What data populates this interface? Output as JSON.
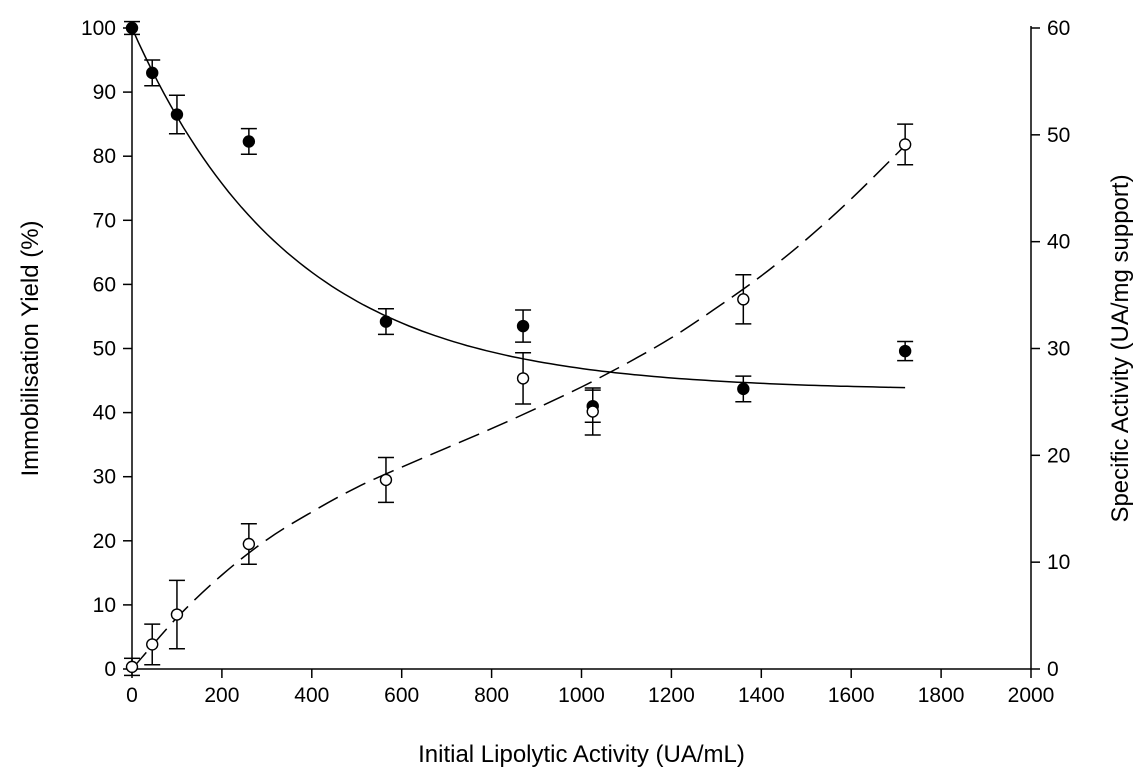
{
  "chart_data": {
    "type": "scatter",
    "title": "",
    "xlabel": "Initial Lipolytic Activity (UA/mL)",
    "ylabel_left": "Immobilisation Yield (%)",
    "ylabel_right": "Specific Activity (UA/mg support)",
    "xlim": [
      0,
      2000
    ],
    "ylim_left": [
      0,
      100
    ],
    "ylim_right": [
      0,
      60
    ],
    "xticks": [
      0,
      200,
      400,
      600,
      800,
      1000,
      1200,
      1400,
      1600,
      1800,
      2000
    ],
    "yticks_left": [
      0,
      10,
      20,
      30,
      40,
      50,
      60,
      70,
      80,
      90,
      100
    ],
    "yticks_right": [
      0,
      10,
      20,
      30,
      40,
      50,
      60
    ],
    "grid": false,
    "legend": "none",
    "series": [
      {
        "axis": "left",
        "marker": "filled-circle",
        "points": [
          {
            "x": 0,
            "y": 100,
            "err": 1
          },
          {
            "x": 45,
            "y": 93,
            "err": 2
          },
          {
            "x": 100,
            "y": 86.5,
            "err": 3
          },
          {
            "x": 260,
            "y": 82.3,
            "err": 2
          },
          {
            "x": 565,
            "y": 54.2,
            "err": 2
          },
          {
            "x": 870,
            "y": 53.5,
            "err": 2.5
          },
          {
            "x": 1025,
            "y": 41,
            "err": 2.5
          },
          {
            "x": 1360,
            "y": 43.7,
            "err": 2
          },
          {
            "x": 1720,
            "y": 49.6,
            "err": 1.5
          }
        ],
        "fit": {
          "style": "solid",
          "x": [
            0,
            1720
          ],
          "y": [
            100,
            43.9
          ],
          "decay_rate": 0.0028
        }
      },
      {
        "axis": "right",
        "marker": "open-circle",
        "points": [
          {
            "x": 0,
            "y": 0.2,
            "err": 0.8
          },
          {
            "x": 45,
            "y": 2.3,
            "err": 1.9
          },
          {
            "x": 100,
            "y": 5.1,
            "err": 3.2
          },
          {
            "x": 260,
            "y": 11.7,
            "err": 1.9
          },
          {
            "x": 565,
            "y": 17.7,
            "err": 2.1
          },
          {
            "x": 870,
            "y": 27.2,
            "err": 2.4
          },
          {
            "x": 1025,
            "y": 24.1,
            "err": 2.2
          },
          {
            "x": 1360,
            "y": 34.6,
            "err": 2.3
          },
          {
            "x": 1720,
            "y": 49.1,
            "err": 1.9
          }
        ],
        "fit": {
          "style": "dashed",
          "x": [
            0,
            100,
            200,
            300,
            400,
            500,
            600,
            700,
            800,
            900,
            1000,
            1100,
            1200,
            1300,
            1400,
            1500,
            1600,
            1720
          ],
          "y": [
            0,
            4.8,
            8.8,
            12.1,
            14.7,
            17.0,
            18.9,
            20.7,
            22.5,
            24.4,
            26.4,
            28.6,
            31.0,
            33.8,
            36.8,
            40.2,
            44.0,
            49.0
          ]
        }
      }
    ]
  }
}
